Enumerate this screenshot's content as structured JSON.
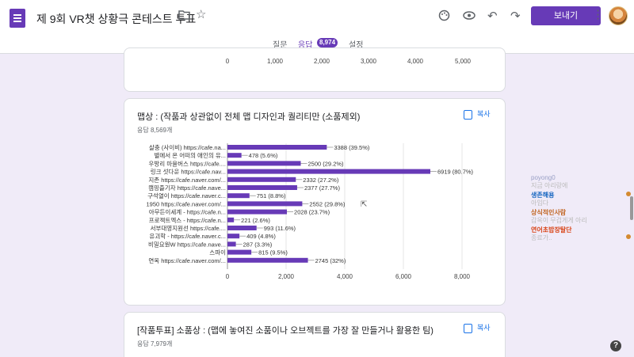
{
  "header": {
    "title": "제 9회 VR챗 상황극 콘테스트 투표",
    "send_label": "보내기",
    "icons": [
      "folder-icon",
      "star-icon",
      "palette-icon",
      "eye-icon",
      "undo-icon",
      "redo-icon",
      "more-icon"
    ]
  },
  "tabs": [
    {
      "label": "질문"
    },
    {
      "label": "응답",
      "badge": "8,974"
    },
    {
      "label": "설정"
    }
  ],
  "prev_card": {
    "ticks": [
      "0",
      "1,000",
      "2,000",
      "3,000",
      "4,000",
      "5,000"
    ]
  },
  "question1": {
    "title": "맵상 : (작품과 상관없이 전체 맵 디자인과 퀄리티만 (소품제외)",
    "count": "응답 8,569개",
    "copy_label": "복사"
  },
  "question2": {
    "title": "[작품투표] 소품상 : (맵에 놓여진 소품이나 오브젝트를 가장 잘 만들거나 활용한 팀)",
    "count": "응답 7,979개",
    "copy_label": "복사"
  },
  "chart_data": {
    "type": "bar",
    "orientation": "horizontal",
    "color": "#673ab7",
    "xlim": [
      0,
      8000
    ],
    "xticks": [
      "0",
      "2,000",
      "4,000",
      "6,000",
      "8,000"
    ],
    "categories": [
      "살충 (사이비) https://cafe.na...",
      "별에서 온 어떠의 애인의 유...",
      "우방리 마을버스 https://cafe....",
      "링크 섯다운 https://cafe.nav...",
      "지존 https://cafe.naver.com/...",
      "캠핑즐기자 https://cafe.nave...",
      "구석열이 https://cafe.naver.c...",
      "1950 https://cafe.naver.com/...",
      "아무든이세계 - https://cafe.n...",
      "프로젝트엑스 - https://cafe.n...",
      "서부대영지원선 https://cafe....",
      "유괴학 - https://cafe.naver.c...",
      "비밀요원W https://cafe.nave...",
      "스파이",
      "연옥 https://cafe.naver.com/..."
    ],
    "values": [
      3388,
      478,
      2500,
      6919,
      2332,
      2377,
      751,
      2552,
      2028,
      221,
      993,
      409,
      287,
      815,
      2745
    ],
    "labels": [
      "3388 (39.5%)",
      "478 (5.6%)",
      "2500 (29.2%)",
      "6919 (80.7%)",
      "2332 (27.2%)",
      "2377 (27.7%)",
      "751 (8.8%)",
      "2552 (29.8%)",
      "2028 (23.7%)",
      "221 (2.6%)",
      "993 (11.6%)",
      "409 (4.8%)",
      "287 (3.3%)",
      "815 (9.5%)",
      "2745 (32%)"
    ]
  },
  "chat": [
    {
      "nick": "poyong0",
      "msg": "지금 아리랑에",
      "color": "#9aa0c6"
    },
    {
      "nick": "생존해용",
      "msg": "아입다",
      "color": "#1565c0"
    },
    {
      "nick": "상식적인사람",
      "msg": "갑옥이 무겁게게 아리",
      "color": "#c0641f"
    },
    {
      "nick": "연어초밥장탈단",
      "msg": "종료가..",
      "color": "#d84315"
    }
  ]
}
